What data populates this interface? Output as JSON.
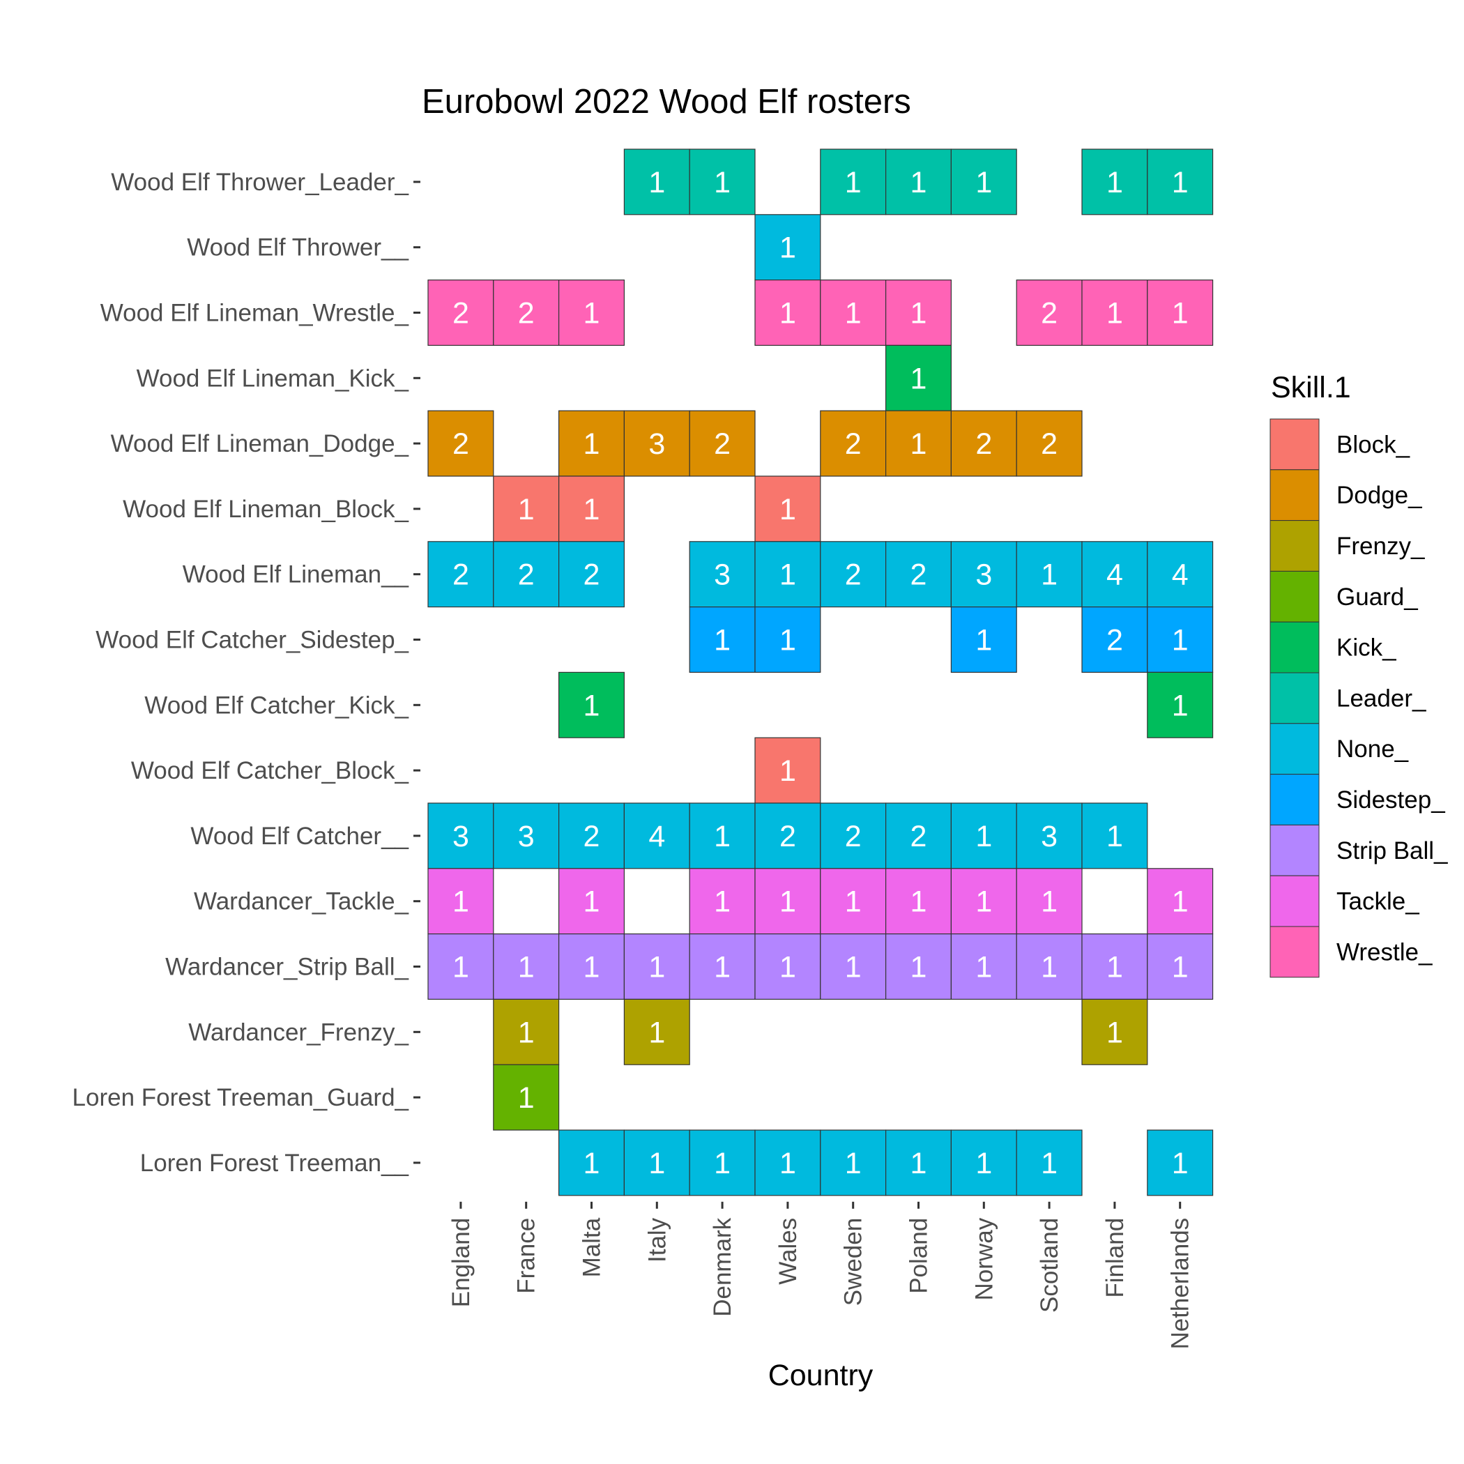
{
  "chart_data": {
    "type": "heatmap",
    "title": "Eurobowl 2022 Wood Elf rosters",
    "xlabel": "Country",
    "ylabel": "",
    "x_categories": [
      "England",
      "France",
      "Malta",
      "Italy",
      "Denmark",
      "Wales",
      "Sweden",
      "Poland",
      "Norway",
      "Scotland",
      "Finland",
      "Netherlands"
    ],
    "y_categories": [
      "Loren Forest Treeman__",
      "Loren Forest Treeman_Guard_",
      "Wardancer_Frenzy_",
      "Wardancer_Strip Ball_",
      "Wardancer_Tackle_",
      "Wood Elf Catcher__",
      "Wood Elf Catcher_Block_",
      "Wood Elf Catcher_Kick_",
      "Wood Elf Catcher_Sidestep_",
      "Wood Elf Lineman__",
      "Wood Elf Lineman_Block_",
      "Wood Elf Lineman_Dodge_",
      "Wood Elf Lineman_Kick_",
      "Wood Elf Lineman_Wrestle_",
      "Wood Elf Thrower__",
      "Wood Elf Thrower_Leader_"
    ],
    "legend": {
      "title": "Skill.1",
      "position": "right",
      "entries": [
        {
          "label": "Block_",
          "color": "#F8766D"
        },
        {
          "label": "Dodge_",
          "color": "#DB8E00"
        },
        {
          "label": "Frenzy_",
          "color": "#AEA200"
        },
        {
          "label": "Guard_",
          "color": "#64B200"
        },
        {
          "label": "Kick_",
          "color": "#00BD5C"
        },
        {
          "label": "Leader_",
          "color": "#00C1A7"
        },
        {
          "label": "None_",
          "color": "#00BADE"
        },
        {
          "label": "Sidestep_",
          "color": "#00A6FF"
        },
        {
          "label": "Strip Ball_",
          "color": "#B385FF"
        },
        {
          "label": "Tackle_",
          "color": "#EF67EB"
        },
        {
          "label": "Wrestle_",
          "color": "#FF63B6"
        }
      ]
    },
    "grid": false,
    "cells": [
      {
        "row": "Wood Elf Thrower_Leader_",
        "skill": "Leader_",
        "values": [
          null,
          null,
          null,
          1,
          1,
          null,
          1,
          1,
          1,
          null,
          1,
          1
        ]
      },
      {
        "row": "Wood Elf Thrower__",
        "skill": "None_",
        "values": [
          null,
          null,
          null,
          null,
          null,
          1,
          null,
          null,
          null,
          null,
          null,
          null
        ]
      },
      {
        "row": "Wood Elf Lineman_Wrestle_",
        "skill": "Wrestle_",
        "values": [
          2,
          2,
          1,
          null,
          null,
          1,
          1,
          1,
          null,
          2,
          1,
          1
        ]
      },
      {
        "row": "Wood Elf Lineman_Kick_",
        "skill": "Kick_",
        "values": [
          null,
          null,
          null,
          null,
          null,
          null,
          null,
          1,
          null,
          null,
          null,
          null
        ]
      },
      {
        "row": "Wood Elf Lineman_Dodge_",
        "skill": "Dodge_",
        "values": [
          2,
          null,
          1,
          3,
          2,
          null,
          2,
          1,
          2,
          2,
          null,
          null
        ]
      },
      {
        "row": "Wood Elf Lineman_Block_",
        "skill": "Block_",
        "values": [
          null,
          1,
          1,
          null,
          null,
          1,
          null,
          null,
          null,
          null,
          null,
          null
        ]
      },
      {
        "row": "Wood Elf Lineman__",
        "skill": "None_",
        "values": [
          2,
          2,
          2,
          null,
          3,
          1,
          2,
          2,
          3,
          1,
          4,
          4
        ]
      },
      {
        "row": "Wood Elf Catcher_Sidestep_",
        "skill": "Sidestep_",
        "values": [
          null,
          null,
          null,
          null,
          1,
          1,
          null,
          null,
          1,
          null,
          2,
          1
        ]
      },
      {
        "row": "Wood Elf Catcher_Kick_",
        "skill": "Kick_",
        "values": [
          null,
          null,
          1,
          null,
          null,
          null,
          null,
          null,
          null,
          null,
          null,
          1
        ]
      },
      {
        "row": "Wood Elf Catcher_Block_",
        "skill": "Block_",
        "values": [
          null,
          null,
          null,
          null,
          null,
          1,
          null,
          null,
          null,
          null,
          null,
          null
        ]
      },
      {
        "row": "Wood Elf Catcher__",
        "skill": "None_",
        "values": [
          3,
          3,
          2,
          4,
          1,
          2,
          2,
          2,
          1,
          3,
          1,
          null
        ]
      },
      {
        "row": "Wardancer_Tackle_",
        "skill": "Tackle_",
        "values": [
          1,
          null,
          1,
          null,
          1,
          1,
          1,
          1,
          1,
          1,
          null,
          1
        ]
      },
      {
        "row": "Wardancer_Strip Ball_",
        "skill": "Strip Ball_",
        "values": [
          1,
          1,
          1,
          1,
          1,
          1,
          1,
          1,
          1,
          1,
          1,
          1
        ]
      },
      {
        "row": "Wardancer_Frenzy_",
        "skill": "Frenzy_",
        "values": [
          null,
          1,
          null,
          1,
          null,
          null,
          null,
          null,
          null,
          null,
          1,
          null
        ]
      },
      {
        "row": "Loren Forest Treeman_Guard_",
        "skill": "Guard_",
        "values": [
          null,
          1,
          null,
          null,
          null,
          null,
          null,
          null,
          null,
          null,
          null,
          null
        ]
      },
      {
        "row": "Loren Forest Treeman__",
        "skill": "None_",
        "values": [
          null,
          null,
          1,
          1,
          1,
          1,
          1,
          1,
          1,
          1,
          null,
          1
        ]
      }
    ]
  }
}
